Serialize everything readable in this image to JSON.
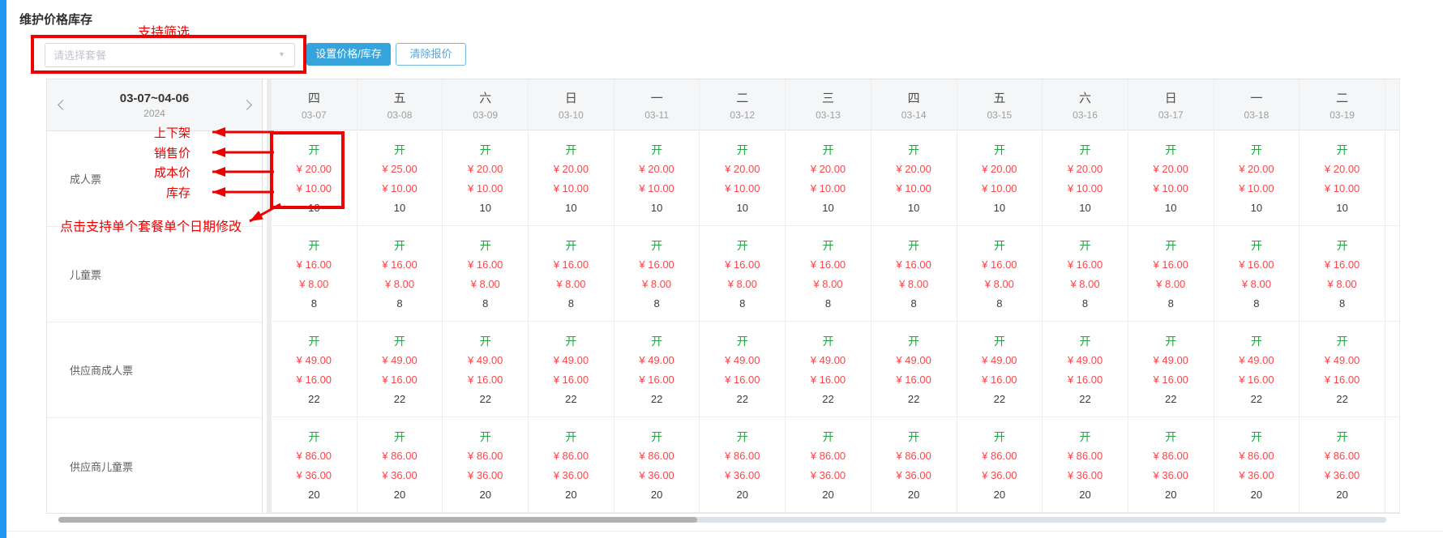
{
  "header": {
    "title": "维护价格库存"
  },
  "filter": {
    "placeholder": "请选择套餐"
  },
  "buttons": {
    "set_price": "设置价格/库存",
    "clear_quote": "清除报价"
  },
  "annotations": {
    "filter_note": "支持筛选",
    "field_labels": [
      "上下架",
      "销售价",
      "成本价",
      "库存"
    ],
    "click_note": "点击支持单个套餐单个日期修改"
  },
  "calendar": {
    "range": "03-07~04-06",
    "year": "2024"
  },
  "colors": {
    "accent_stripe_blue": "#2196f3",
    "button_blue": "#35a4dd",
    "status_green": "#21a643",
    "price_red": "#f8474b",
    "annotation_red": "#ec0000",
    "header_gray": "#f5f6f7"
  },
  "grid": {
    "columns": [
      {
        "weekday": "四",
        "date": "03-07"
      },
      {
        "weekday": "五",
        "date": "03-08"
      },
      {
        "weekday": "六",
        "date": "03-09"
      },
      {
        "weekday": "日",
        "date": "03-10"
      },
      {
        "weekday": "一",
        "date": "03-11"
      },
      {
        "weekday": "二",
        "date": "03-12"
      },
      {
        "weekday": "三",
        "date": "03-13"
      },
      {
        "weekday": "四",
        "date": "03-14"
      },
      {
        "weekday": "五",
        "date": "03-15"
      },
      {
        "weekday": "六",
        "date": "03-16"
      },
      {
        "weekday": "日",
        "date": "03-17"
      },
      {
        "weekday": "一",
        "date": "03-18"
      },
      {
        "weekday": "二",
        "date": "03-19"
      }
    ],
    "rows": [
      {
        "label": "成人票",
        "cells": [
          {
            "status": "开",
            "sale": "¥ 20.00",
            "cost": "¥ 10.00",
            "stock": "10"
          },
          {
            "status": "开",
            "sale": "¥ 25.00",
            "cost": "¥ 10.00",
            "stock": "10"
          },
          {
            "status": "开",
            "sale": "¥ 20.00",
            "cost": "¥ 10.00",
            "stock": "10"
          },
          {
            "status": "开",
            "sale": "¥ 20.00",
            "cost": "¥ 10.00",
            "stock": "10"
          },
          {
            "status": "开",
            "sale": "¥ 20.00",
            "cost": "¥ 10.00",
            "stock": "10"
          },
          {
            "status": "开",
            "sale": "¥ 20.00",
            "cost": "¥ 10.00",
            "stock": "10"
          },
          {
            "status": "开",
            "sale": "¥ 20.00",
            "cost": "¥ 10.00",
            "stock": "10"
          },
          {
            "status": "开",
            "sale": "¥ 20.00",
            "cost": "¥ 10.00",
            "stock": "10"
          },
          {
            "status": "开",
            "sale": "¥ 20.00",
            "cost": "¥ 10.00",
            "stock": "10"
          },
          {
            "status": "开",
            "sale": "¥ 20.00",
            "cost": "¥ 10.00",
            "stock": "10"
          },
          {
            "status": "开",
            "sale": "¥ 20.00",
            "cost": "¥ 10.00",
            "stock": "10"
          },
          {
            "status": "开",
            "sale": "¥ 20.00",
            "cost": "¥ 10.00",
            "stock": "10"
          },
          {
            "status": "开",
            "sale": "¥ 20.00",
            "cost": "¥ 10.00",
            "stock": "10"
          }
        ]
      },
      {
        "label": "儿童票",
        "cells": [
          {
            "status": "开",
            "sale": "¥ 16.00",
            "cost": "¥ 8.00",
            "stock": "8"
          },
          {
            "status": "开",
            "sale": "¥ 16.00",
            "cost": "¥ 8.00",
            "stock": "8"
          },
          {
            "status": "开",
            "sale": "¥ 16.00",
            "cost": "¥ 8.00",
            "stock": "8"
          },
          {
            "status": "开",
            "sale": "¥ 16.00",
            "cost": "¥ 8.00",
            "stock": "8"
          },
          {
            "status": "开",
            "sale": "¥ 16.00",
            "cost": "¥ 8.00",
            "stock": "8"
          },
          {
            "status": "开",
            "sale": "¥ 16.00",
            "cost": "¥ 8.00",
            "stock": "8"
          },
          {
            "status": "开",
            "sale": "¥ 16.00",
            "cost": "¥ 8.00",
            "stock": "8"
          },
          {
            "status": "开",
            "sale": "¥ 16.00",
            "cost": "¥ 8.00",
            "stock": "8"
          },
          {
            "status": "开",
            "sale": "¥ 16.00",
            "cost": "¥ 8.00",
            "stock": "8"
          },
          {
            "status": "开",
            "sale": "¥ 16.00",
            "cost": "¥ 8.00",
            "stock": "8"
          },
          {
            "status": "开",
            "sale": "¥ 16.00",
            "cost": "¥ 8.00",
            "stock": "8"
          },
          {
            "status": "开",
            "sale": "¥ 16.00",
            "cost": "¥ 8.00",
            "stock": "8"
          },
          {
            "status": "开",
            "sale": "¥ 16.00",
            "cost": "¥ 8.00",
            "stock": "8"
          }
        ]
      },
      {
        "label": "供应商成人票",
        "cells": [
          {
            "status": "开",
            "sale": "¥ 49.00",
            "cost": "¥ 16.00",
            "stock": "22"
          },
          {
            "status": "开",
            "sale": "¥ 49.00",
            "cost": "¥ 16.00",
            "stock": "22"
          },
          {
            "status": "开",
            "sale": "¥ 49.00",
            "cost": "¥ 16.00",
            "stock": "22"
          },
          {
            "status": "开",
            "sale": "¥ 49.00",
            "cost": "¥ 16.00",
            "stock": "22"
          },
          {
            "status": "开",
            "sale": "¥ 49.00",
            "cost": "¥ 16.00",
            "stock": "22"
          },
          {
            "status": "开",
            "sale": "¥ 49.00",
            "cost": "¥ 16.00",
            "stock": "22"
          },
          {
            "status": "开",
            "sale": "¥ 49.00",
            "cost": "¥ 16.00",
            "stock": "22"
          },
          {
            "status": "开",
            "sale": "¥ 49.00",
            "cost": "¥ 16.00",
            "stock": "22"
          },
          {
            "status": "开",
            "sale": "¥ 49.00",
            "cost": "¥ 16.00",
            "stock": "22"
          },
          {
            "status": "开",
            "sale": "¥ 49.00",
            "cost": "¥ 16.00",
            "stock": "22"
          },
          {
            "status": "开",
            "sale": "¥ 49.00",
            "cost": "¥ 16.00",
            "stock": "22"
          },
          {
            "status": "开",
            "sale": "¥ 49.00",
            "cost": "¥ 16.00",
            "stock": "22"
          },
          {
            "status": "开",
            "sale": "¥ 49.00",
            "cost": "¥ 16.00",
            "stock": "22"
          }
        ]
      },
      {
        "label": "供应商儿童票",
        "cells": [
          {
            "status": "开",
            "sale": "¥ 86.00",
            "cost": "¥ 36.00",
            "stock": "20"
          },
          {
            "status": "开",
            "sale": "¥ 86.00",
            "cost": "¥ 36.00",
            "stock": "20"
          },
          {
            "status": "开",
            "sale": "¥ 86.00",
            "cost": "¥ 36.00",
            "stock": "20"
          },
          {
            "status": "开",
            "sale": "¥ 86.00",
            "cost": "¥ 36.00",
            "stock": "20"
          },
          {
            "status": "开",
            "sale": "¥ 86.00",
            "cost": "¥ 36.00",
            "stock": "20"
          },
          {
            "status": "开",
            "sale": "¥ 86.00",
            "cost": "¥ 36.00",
            "stock": "20"
          },
          {
            "status": "开",
            "sale": "¥ 86.00",
            "cost": "¥ 36.00",
            "stock": "20"
          },
          {
            "status": "开",
            "sale": "¥ 86.00",
            "cost": "¥ 36.00",
            "stock": "20"
          },
          {
            "status": "开",
            "sale": "¥ 86.00",
            "cost": "¥ 36.00",
            "stock": "20"
          },
          {
            "status": "开",
            "sale": "¥ 86.00",
            "cost": "¥ 36.00",
            "stock": "20"
          },
          {
            "status": "开",
            "sale": "¥ 86.00",
            "cost": "¥ 36.00",
            "stock": "20"
          },
          {
            "status": "开",
            "sale": "¥ 86.00",
            "cost": "¥ 36.00",
            "stock": "20"
          },
          {
            "status": "开",
            "sale": "¥ 86.00",
            "cost": "¥ 36.00",
            "stock": "20"
          }
        ]
      }
    ]
  }
}
